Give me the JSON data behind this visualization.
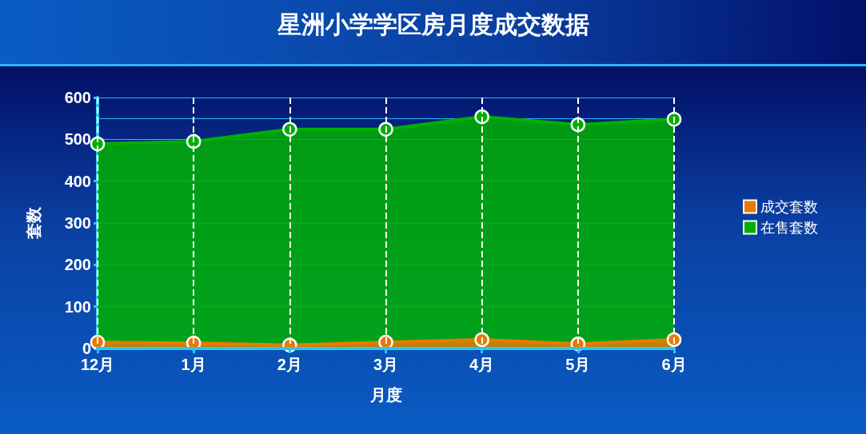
{
  "chart_data": {
    "type": "area",
    "title": "星洲小学学区房月度成交数据",
    "xlabel": "月度",
    "ylabel": "套数",
    "categories": [
      "12月",
      "1月",
      "2月",
      "3月",
      "4月",
      "5月",
      "6月"
    ],
    "series": [
      {
        "name": "成交套数",
        "color": "#e87a00",
        "values": [
          15,
          13,
          8,
          15,
          21,
          11,
          21
        ]
      },
      {
        "name": "在售套数",
        "color": "#00b000",
        "values": [
          489,
          495,
          524,
          524,
          554,
          535,
          548
        ]
      }
    ],
    "ylim": [
      0,
      600
    ],
    "yticks": [
      0,
      100,
      200,
      300,
      400,
      500,
      600
    ],
    "ref_lines": [
      {
        "axis": "y",
        "value": 550,
        "label": null,
        "color": "#29b6f6"
      }
    ],
    "grid": true,
    "legend": "right",
    "marker": "circle",
    "line_style": "solid"
  }
}
